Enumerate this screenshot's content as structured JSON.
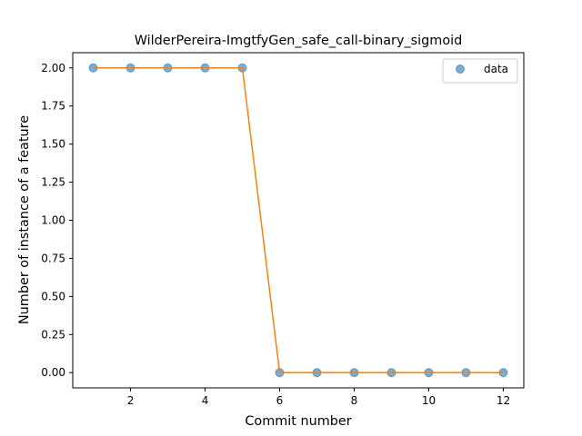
{
  "chart_data": {
    "type": "scatter",
    "title": "WilderPereira-ImgtfyGen_safe_call-binary_sigmoid",
    "xlabel": "Commit number",
    "ylabel": "Number of instance of a feature",
    "xlim": [
      0.45,
      12.55
    ],
    "ylim": [
      -0.1,
      2.1
    ],
    "x_ticks": [
      2,
      4,
      6,
      8,
      10,
      12
    ],
    "y_ticks": [
      0.0,
      0.25,
      0.5,
      0.75,
      1.0,
      1.25,
      1.5,
      1.75,
      2.0
    ],
    "x_tick_labels": [
      "2",
      "4",
      "6",
      "8",
      "10",
      "12"
    ],
    "y_tick_labels": [
      "0.00",
      "0.25",
      "0.50",
      "0.75",
      "1.00",
      "1.25",
      "1.50",
      "1.75",
      "2.00"
    ],
    "grid": false,
    "legend_position": "top-right",
    "series": [
      {
        "name": "data",
        "kind": "scatter",
        "color": "#1f77b4",
        "x": [
          1,
          2,
          3,
          4,
          5,
          6,
          7,
          8,
          9,
          10,
          11,
          12
        ],
        "y": [
          2,
          2,
          2,
          2,
          2,
          0,
          0,
          0,
          0,
          0,
          0,
          0
        ]
      },
      {
        "kind": "line",
        "color": "#ff7f0e",
        "x": [
          1,
          2,
          3,
          4,
          5,
          6,
          7,
          8,
          9,
          10,
          11,
          12
        ],
        "y": [
          2,
          2,
          2,
          2,
          2,
          0,
          0,
          0,
          0,
          0,
          0,
          0
        ]
      }
    ]
  }
}
